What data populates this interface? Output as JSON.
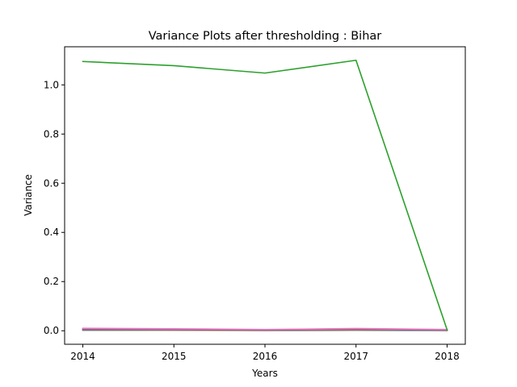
{
  "chart_data": {
    "type": "line",
    "title": "Variance Plots after thresholding : Bihar",
    "xlabel": "Years",
    "ylabel": "Variance",
    "x": [
      2014,
      2015,
      2016,
      2017,
      2018
    ],
    "x_ticks": [
      "2014",
      "2015",
      "2016",
      "2017",
      "2018"
    ],
    "y_ticks": [
      "0.0",
      "0.2",
      "0.4",
      "0.6",
      "0.8",
      "1.0"
    ],
    "y_tick_values": [
      0.0,
      0.2,
      0.4,
      0.6,
      0.8,
      1.0
    ],
    "xlim": [
      2013.8,
      2018.2
    ],
    "ylim": [
      -0.055,
      1.155
    ],
    "grid": false,
    "series": [
      {
        "color": "#2ca02c",
        "values": [
          1.095,
          1.078,
          1.048,
          1.1,
          0.004
        ]
      },
      {
        "color": "#1f77b4",
        "values": [
          0.002,
          0.002,
          0.001,
          0.002,
          0.001
        ]
      },
      {
        "color": "#ff7f0e",
        "values": [
          0.004,
          0.003,
          0.002,
          0.004,
          0.002
        ]
      },
      {
        "color": "#d62728",
        "values": [
          0.006,
          0.005,
          0.003,
          0.006,
          0.003
        ]
      },
      {
        "color": "#8c564b",
        "values": [
          0.005,
          0.004,
          0.003,
          0.007,
          0.002
        ]
      },
      {
        "color": "#9467bd",
        "values": [
          0.008,
          0.006,
          0.004,
          0.008,
          0.004
        ]
      },
      {
        "color": "#e377c2",
        "values": [
          0.01,
          0.008,
          0.005,
          0.009,
          0.005
        ]
      }
    ]
  }
}
